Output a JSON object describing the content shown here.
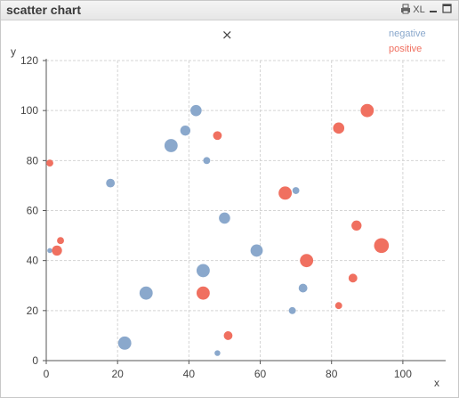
{
  "window": {
    "title": "scatter chart",
    "buttons": {
      "print_icon": "print-icon",
      "xl_label": "XL",
      "minimize_icon": "minimize-icon",
      "maximize_icon": "maximize-icon"
    }
  },
  "close_glyph": "×",
  "chart_data": {
    "type": "scatter",
    "title": "",
    "xlabel": "x",
    "ylabel": "y",
    "xlim": [
      0,
      112
    ],
    "ylim": [
      0,
      120
    ],
    "xticks": [
      0,
      20,
      40,
      60,
      80,
      100
    ],
    "yticks": [
      0,
      20,
      40,
      60,
      80,
      100,
      120
    ],
    "grid": true,
    "legend_position": "top-right",
    "series": [
      {
        "name": "negative",
        "color": "#8aa8cc",
        "points": [
          {
            "x": 42,
            "y": 100,
            "size": 4
          },
          {
            "x": 39,
            "y": 92,
            "size": 3
          },
          {
            "x": 35,
            "y": 86,
            "size": 6
          },
          {
            "x": 45,
            "y": 80,
            "size": 1
          },
          {
            "x": 18,
            "y": 71,
            "size": 2
          },
          {
            "x": 70,
            "y": 68,
            "size": 1
          },
          {
            "x": 50,
            "y": 57,
            "size": 4
          },
          {
            "x": 59,
            "y": 44,
            "size": 5
          },
          {
            "x": 44,
            "y": 36,
            "size": 6
          },
          {
            "x": 72,
            "y": 29,
            "size": 2
          },
          {
            "x": 28,
            "y": 27,
            "size": 6
          },
          {
            "x": 69,
            "y": 20,
            "size": 1
          },
          {
            "x": 22,
            "y": 7,
            "size": 6
          },
          {
            "x": 48,
            "y": 3,
            "size": 0.5
          },
          {
            "x": 1,
            "y": 44,
            "size": 0.3
          }
        ]
      },
      {
        "name": "positive",
        "color": "#f07060",
        "points": [
          {
            "x": 90,
            "y": 100,
            "size": 6
          },
          {
            "x": 82,
            "y": 93,
            "size": 4
          },
          {
            "x": 48,
            "y": 90,
            "size": 2
          },
          {
            "x": 1,
            "y": 79,
            "size": 1
          },
          {
            "x": 67,
            "y": 67,
            "size": 6
          },
          {
            "x": 87,
            "y": 54,
            "size": 3
          },
          {
            "x": 94,
            "y": 46,
            "size": 8
          },
          {
            "x": 4,
            "y": 48,
            "size": 1
          },
          {
            "x": 3,
            "y": 44,
            "size": 3
          },
          {
            "x": 73,
            "y": 40,
            "size": 6
          },
          {
            "x": 86,
            "y": 33,
            "size": 2
          },
          {
            "x": 44,
            "y": 27,
            "size": 6
          },
          {
            "x": 82,
            "y": 22,
            "size": 1
          },
          {
            "x": 51,
            "y": 10,
            "size": 2
          }
        ]
      }
    ]
  }
}
